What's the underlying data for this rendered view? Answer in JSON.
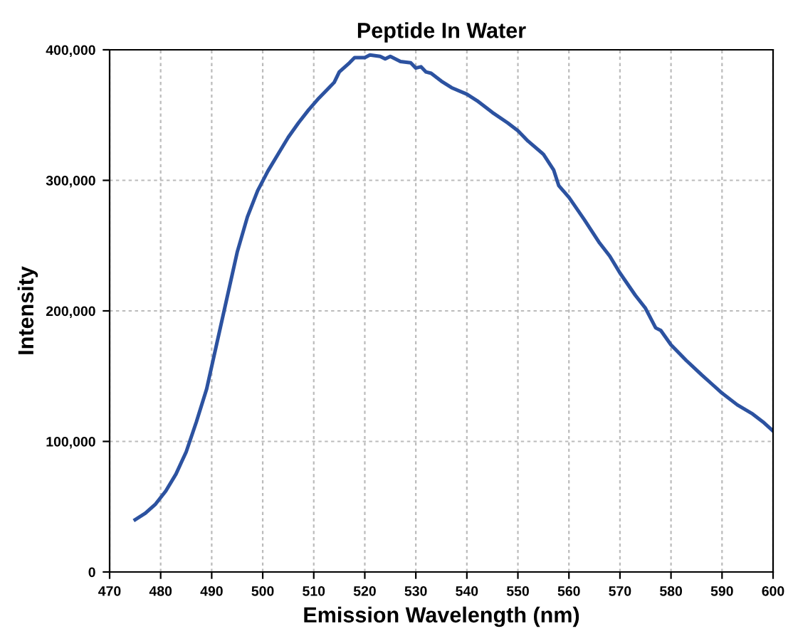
{
  "chart_data": {
    "type": "line",
    "title": "Peptide In Water",
    "xlabel": "Emission Wavelength (nm)",
    "ylabel": "Intensity",
    "xlim": [
      470,
      600
    ],
    "xticks": [
      470,
      480,
      490,
      500,
      510,
      520,
      530,
      540,
      550,
      560,
      570,
      580,
      590,
      600
    ],
    "ylim": [
      0,
      400000
    ],
    "yticks": [
      {
        "value": 0,
        "label": "0"
      },
      {
        "value": 100000,
        "label": "100,000"
      },
      {
        "value": 200000,
        "label": "200,000"
      },
      {
        "value": 300000,
        "label": "300,000"
      },
      {
        "value": 400000,
        "label": "400,000"
      }
    ],
    "grid": true,
    "marker": "none",
    "line_style": "solid",
    "series": [
      {
        "color": "#2c52a0",
        "x": [
          475,
          477,
          479,
          481,
          483,
          485,
          487,
          489,
          491,
          493,
          495,
          497,
          499,
          501,
          503,
          505,
          507,
          509,
          511,
          513,
          514,
          515,
          517,
          518,
          520,
          521,
          523,
          524,
          525,
          527,
          529,
          530,
          531,
          532,
          533,
          535,
          537,
          540,
          542,
          545,
          548,
          550,
          552,
          555,
          557,
          558,
          560,
          563,
          566,
          568,
          570,
          573,
          575,
          577,
          578,
          580,
          583,
          586,
          588,
          590,
          593,
          596,
          598,
          600
        ],
        "values": [
          40000,
          45000,
          52000,
          62000,
          75000,
          92000,
          115000,
          140000,
          175000,
          210000,
          245000,
          272000,
          292000,
          307000,
          320000,
          333000,
          344000,
          354000,
          363000,
          371000,
          375000,
          383000,
          390000,
          394000,
          394000,
          396000,
          395000,
          393000,
          395000,
          391000,
          390000,
          386000,
          387000,
          383000,
          382000,
          376000,
          371000,
          366000,
          361000,
          352000,
          344000,
          338000,
          330000,
          320000,
          308000,
          296000,
          287000,
          270000,
          252000,
          242000,
          229000,
          212000,
          202000,
          187000,
          185000,
          174000,
          162000,
          151000,
          144000,
          137000,
          128000,
          121000,
          115000,
          108000
        ]
      }
    ]
  }
}
